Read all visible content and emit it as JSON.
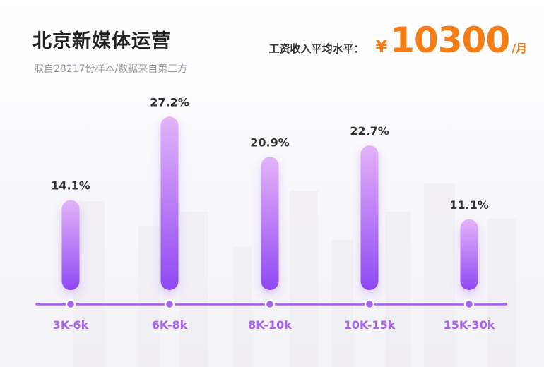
{
  "header": {
    "title": "北京新媒体运营",
    "subtitle": "取自28217份样本/数据来自第三方"
  },
  "salary": {
    "label": "工资收入平均水平：",
    "currency": "¥",
    "value": "10300",
    "unit": "/月"
  },
  "colors": {
    "bar_top": "#e3b3f8",
    "bar_bottom": "#9048f4",
    "axis": "#a864ec",
    "category_label": "#a864ec",
    "accent": "#f47d16"
  },
  "chart_data": {
    "type": "bar",
    "categories": [
      "3K-6k",
      "6K-8k",
      "8K-10k",
      "10K-15k",
      "15K-30k"
    ],
    "values": [
      14.1,
      27.2,
      20.9,
      22.7,
      11.1
    ],
    "value_labels": [
      "14.1%",
      "27.2%",
      "20.9%",
      "22.7%",
      "11.1%"
    ],
    "ylim": [
      0,
      30
    ],
    "grid": false,
    "legend": "none"
  }
}
